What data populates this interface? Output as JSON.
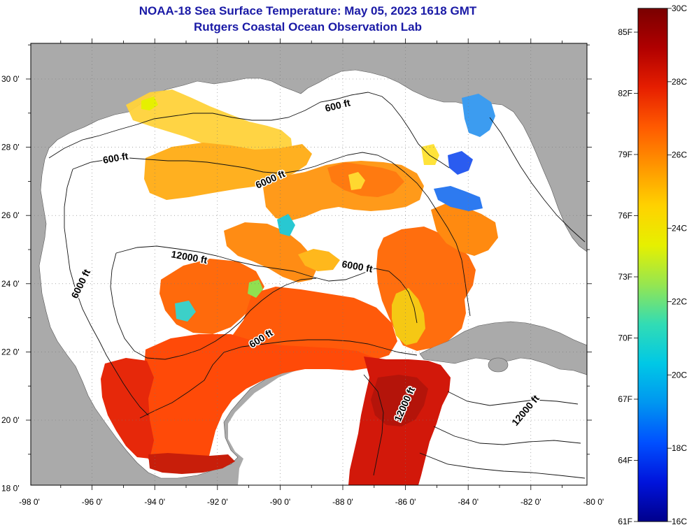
{
  "header": {
    "title_line1": "NOAA-18 Sea Surface Temperature:  May 05, 2023 1618 GMT",
    "title_line2": "Rutgers Coastal Ocean Observation Lab"
  },
  "axes": {
    "lon_ticks": [
      "-98 0'",
      "-96 0'",
      "-94 0'",
      "-92 0'",
      "-90 0'",
      "-88 0'",
      "-86 0'",
      "-84 0'",
      "-82 0'",
      "-80 0'"
    ],
    "lat_ticks": [
      "30 0'",
      "28 0'",
      "26 0'",
      "24 0'",
      "22 0'",
      "20 0'",
      "18 0'"
    ]
  },
  "contour_labels": [
    "600 ft",
    "600 ft",
    "6000 ft",
    "12000 ft",
    "6000 ft",
    "6000 ft",
    "600 ft",
    "12000 ft",
    "12000 ft"
  ],
  "colorbar": {
    "fahrenheit_labels": [
      "85F",
      "82F",
      "79F",
      "76F",
      "73F",
      "70F",
      "67F",
      "64F",
      "61F"
    ],
    "celsius_labels": [
      "30C",
      "28C",
      "26C",
      "24C",
      "22C",
      "20C",
      "18C",
      "16C"
    ],
    "colors": [
      "#7a0000",
      "#b00000",
      "#e61e00",
      "#ff5a00",
      "#ff9600",
      "#ffd200",
      "#e6f000",
      "#96e650",
      "#32dcb4",
      "#00c8e6",
      "#0096f0",
      "#0050ff",
      "#0014dc",
      "#00008c"
    ]
  },
  "colors": {
    "land": "#aaaaaa",
    "ocean_no_data": "#ffffff",
    "title_color": "#1a1aa6"
  }
}
